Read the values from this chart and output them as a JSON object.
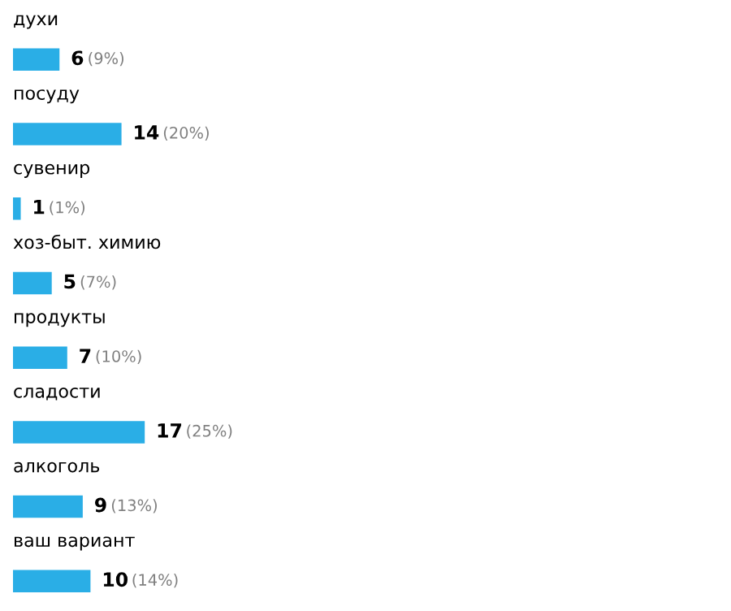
{
  "chart_data": {
    "type": "bar",
    "orientation": "horizontal",
    "categories": [
      "духи",
      "посуду",
      "сувенир",
      "хоз-быт. химию",
      "продукты",
      "сладости",
      "алкоголь",
      "ваш вариант"
    ],
    "values": [
      6,
      14,
      1,
      5,
      7,
      17,
      9,
      10
    ],
    "value_labels": [
      "6 (9%)",
      "14 (20%)",
      "1 (1%)",
      "5 (7%)",
      "7 (10%)",
      "17 (25%)",
      "9 (13%)",
      "10 (14%)"
    ],
    "color": "#2aaee6"
  }
}
